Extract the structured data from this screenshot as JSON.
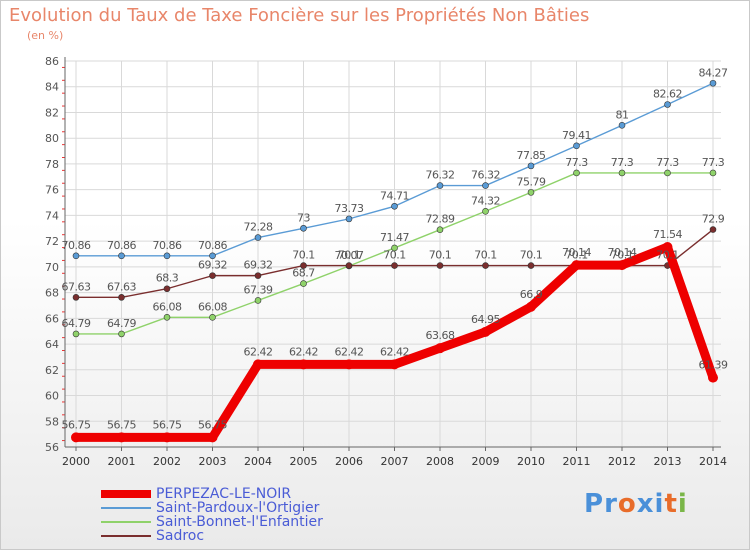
{
  "title": "Evolution du Taux de Taxe Foncière sur les Propriétés Non Bâties",
  "unit_label": "(en %)",
  "logo": {
    "text": "Proxiti",
    "letters": [
      "P",
      "r",
      "o",
      "x",
      "i",
      "t",
      "i"
    ],
    "colors": [
      "#4a90d9",
      "#4a90d9",
      "#e86c2a",
      "#4a90d9",
      "#4a90d9",
      "#e86c2a",
      "#7ab648"
    ]
  },
  "chart_data": {
    "type": "line",
    "title": "Evolution du Taux de Taxe Foncière sur les Propriétés Non Bâties",
    "ylabel": "(en %)",
    "xlabel": "",
    "ylim": [
      56,
      86
    ],
    "yticks": [
      56,
      58,
      60,
      62,
      64,
      66,
      68,
      70,
      72,
      74,
      76,
      78,
      80,
      82,
      84,
      86
    ],
    "categories": [
      "2000",
      "2001",
      "2002",
      "2003",
      "2004",
      "2005",
      "2006",
      "2007",
      "2008",
      "2009",
      "2010",
      "2011",
      "2012",
      "2013",
      "2014"
    ],
    "grid": true,
    "series": [
      {
        "name": "PERPEZAC-LE-NOIR",
        "color": "#ee0000",
        "thick": true,
        "values": [
          56.75,
          56.75,
          56.75,
          56.75,
          62.42,
          62.42,
          62.42,
          62.42,
          63.68,
          64.95,
          66.9,
          70.14,
          70.14,
          71.54,
          61.39
        ],
        "labels": [
          "56.75",
          "56.75",
          "56.75",
          "56.75",
          "62.42",
          "62.42",
          "62.42",
          "62.42",
          "63.68",
          "64.95",
          "66.9",
          "70.14",
          "70.14",
          "71.54",
          "61.39"
        ]
      },
      {
        "name": "Saint-Pardoux-l'Ortigier",
        "color": "#5a9bd5",
        "thick": false,
        "values": [
          70.86,
          70.86,
          70.86,
          70.86,
          72.28,
          73,
          73.73,
          74.71,
          76.32,
          76.32,
          77.85,
          79.41,
          81,
          82.62,
          84.27
        ],
        "labels": [
          "70.86",
          "70.86",
          "70.86",
          "70.86",
          "72.28",
          "73",
          "73.73",
          "74.71",
          "76.32",
          "76.32",
          "77.85",
          "79.41",
          "81",
          "82.62",
          "84.27"
        ]
      },
      {
        "name": "Saint-Bonnet-l'Enfantier",
        "color": "#8fd26a",
        "thick": false,
        "values": [
          64.79,
          64.79,
          66.08,
          66.08,
          67.39,
          68.7,
          70.07,
          71.47,
          72.89,
          74.32,
          75.79,
          77.3,
          77.3,
          77.3,
          77.3
        ],
        "labels": [
          "64.79",
          "64.79",
          "66.08",
          "66.08",
          "67.39",
          "68.7",
          "70.07",
          "71.47",
          "72.89",
          "74.32",
          "75.79",
          "77.3",
          "77.3",
          "77.3",
          "77.3"
        ]
      },
      {
        "name": "Sadroc",
        "color": "#7a2e2e",
        "thick": false,
        "values": [
          67.63,
          67.63,
          68.3,
          69.32,
          69.32,
          70.1,
          70.1,
          70.1,
          70.1,
          70.1,
          70.1,
          70.1,
          70.1,
          70.1,
          72.9
        ],
        "labels": [
          "67.63",
          "67.63",
          "68.3",
          "69.32",
          "69.32",
          "70.1",
          "70.1",
          "70.1",
          "70.1",
          "70.1",
          "70.1",
          "70.1",
          "70.1",
          "70.1",
          "72.9"
        ]
      }
    ],
    "legend_position": "bottom-left"
  }
}
